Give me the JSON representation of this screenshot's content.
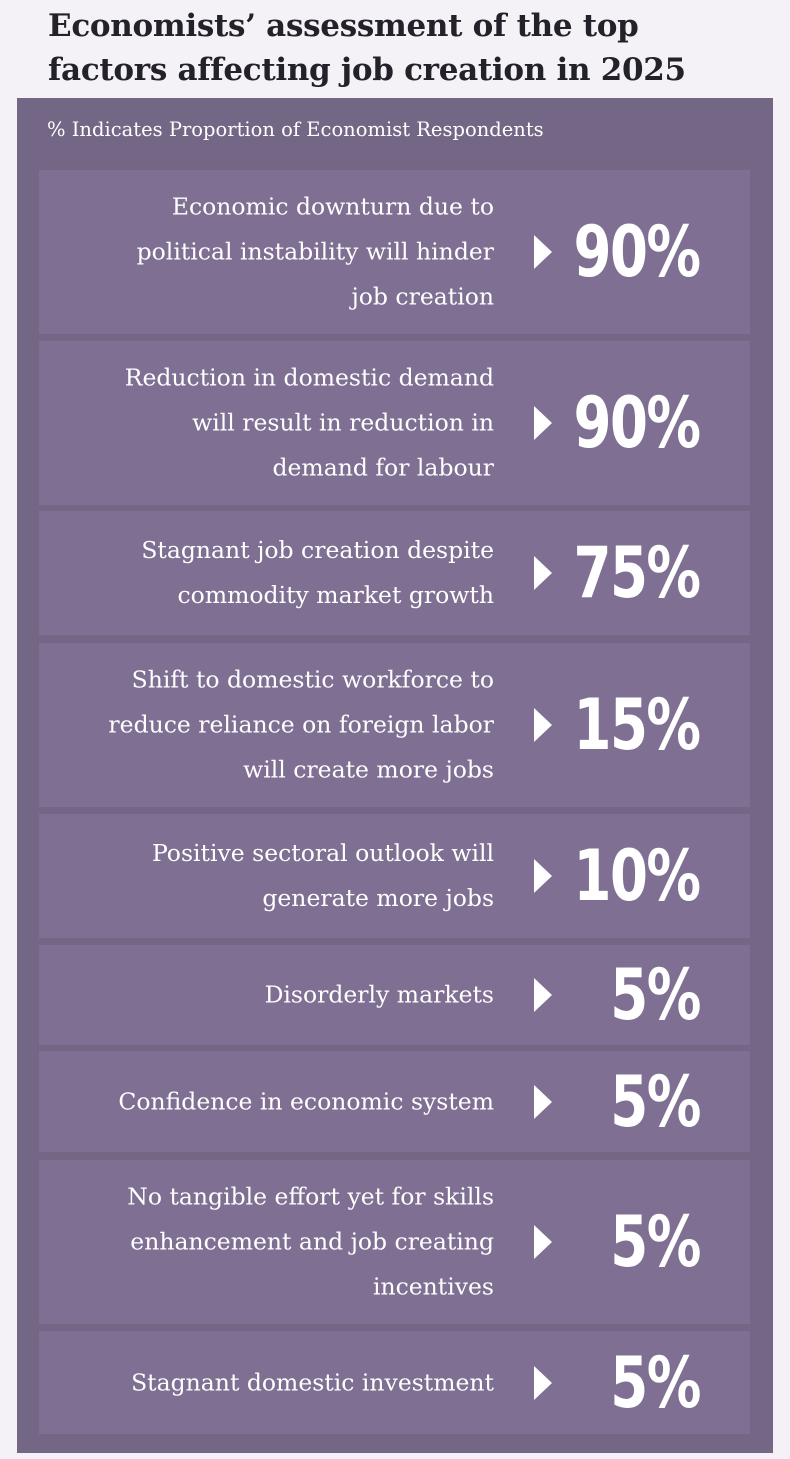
{
  "title_lines": [
    "Economists’ assessment of the top",
    "factors affecting job creation in 2025"
  ],
  "subtitle": "% Indicates Proportion of Economist Respondents",
  "chart_data": {
    "type": "table",
    "title": "Economists’ assessment of the top factors affecting job creation in 2025",
    "note": "% Indicates Proportion of Economist Respondents",
    "unit": "%",
    "rows": [
      {
        "label_lines": [
          "Economic downturn due to",
          "political instability will hinder",
          "job creation"
        ],
        "value": 90,
        "display": "90%"
      },
      {
        "label_lines": [
          "Reduction in domestic demand",
          "will result in reduction in",
          "demand for labour"
        ],
        "value": 90,
        "display": "90%"
      },
      {
        "label_lines": [
          "Stagnant job creation despite",
          "commodity market growth"
        ],
        "value": 75,
        "display": "75%"
      },
      {
        "label_lines": [
          "Shift to domestic workforce to",
          "reduce reliance on foreign labor",
          "will create more jobs"
        ],
        "value": 15,
        "display": "15%"
      },
      {
        "label_lines": [
          "Positive sectoral outlook will",
          "generate more jobs"
        ],
        "value": 10,
        "display": "10%"
      },
      {
        "label_lines": [
          "Disorderly markets"
        ],
        "value": 5,
        "display": "5%"
      },
      {
        "label_lines": [
          "Confidence in economic system"
        ],
        "value": 5,
        "display": "5%"
      },
      {
        "label_lines": [
          "No tangible effort yet for skills",
          "enhancement and job creating",
          "incentives"
        ],
        "value": 5,
        "display": "5%"
      },
      {
        "label_lines": [
          "Stagnant domestic investment"
        ],
        "value": 5,
        "display": "5%"
      }
    ]
  },
  "colors": {
    "page_background": "#f4f2f6",
    "panel": "#746685",
    "row": "#7f7093",
    "text": "#ffffff",
    "title": "#23212a"
  }
}
